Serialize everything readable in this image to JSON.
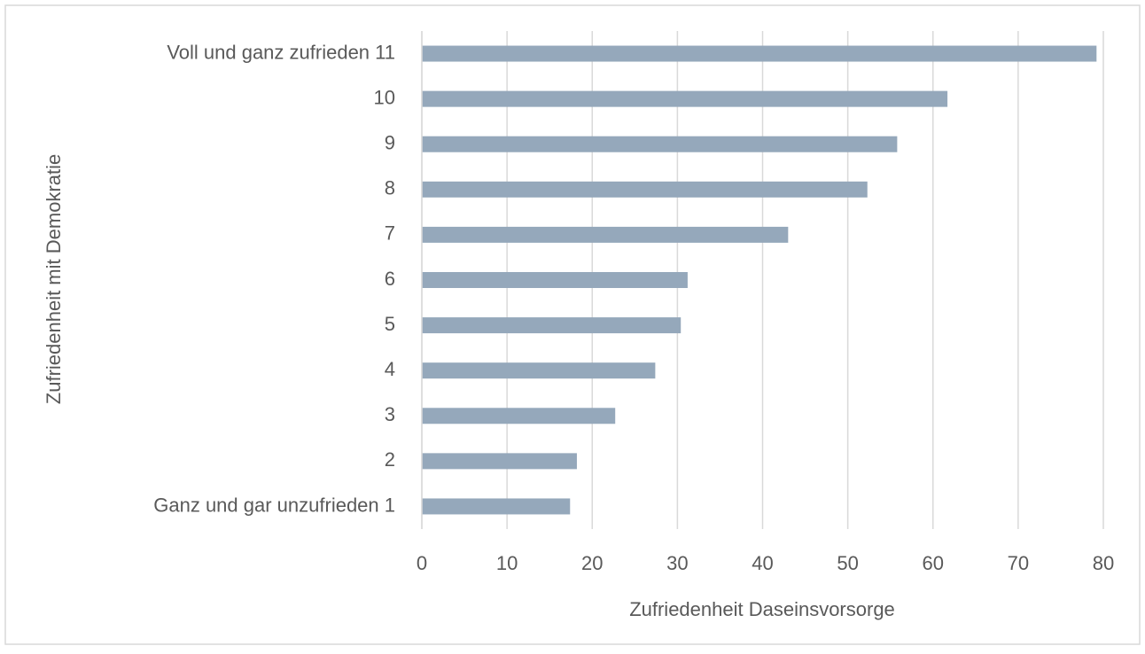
{
  "chart_data": {
    "type": "bar",
    "orientation": "horizontal",
    "x_label": "Zufriedenheit Daseinsvorsorge",
    "y_label": "Zufriedenheit mit Demokratie",
    "categories": [
      "Ganz und gar unzufrieden 1",
      "2",
      "3",
      "4",
      "5",
      "6",
      "7",
      "8",
      "9",
      "10",
      "Voll und ganz zufrieden 11"
    ],
    "values": [
      17.4,
      18.2,
      22.7,
      27.4,
      30.4,
      31.2,
      43.0,
      52.3,
      55.8,
      61.7,
      79.2
    ],
    "color": "#95a8bb",
    "xlim": [
      0,
      80
    ],
    "xticks": [
      0,
      10,
      20,
      30,
      40,
      50,
      60,
      70,
      80
    ],
    "grid": true
  }
}
